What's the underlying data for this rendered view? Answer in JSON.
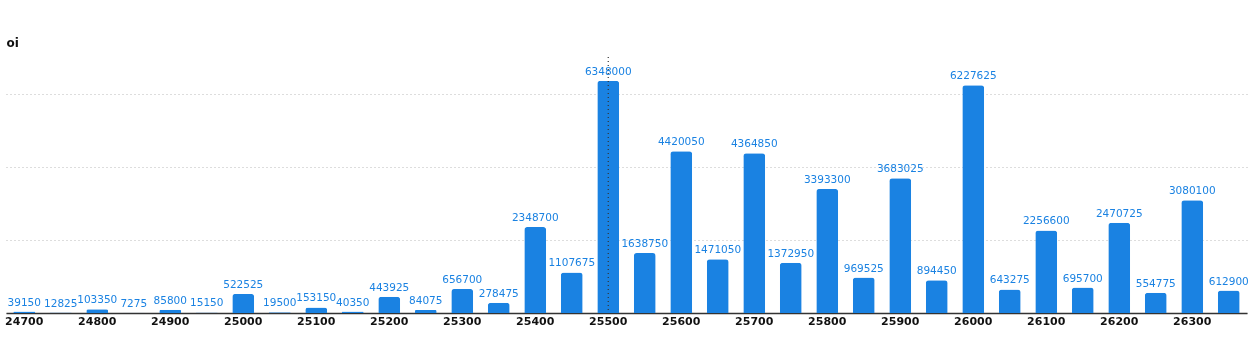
{
  "chart_data": {
    "type": "bar",
    "ylabel": "oi",
    "categories": [
      "24700",
      null,
      "24800",
      null,
      "24900",
      null,
      "25000",
      null,
      "25100",
      null,
      "25200",
      null,
      "25300",
      null,
      "25400",
      null,
      "25500",
      null,
      "25600",
      null,
      "25700",
      null,
      "25800",
      null,
      "25900",
      null,
      "26000",
      null,
      "26100",
      null,
      "26200",
      null,
      "26300",
      null
    ],
    "values": [
      39150,
      12825,
      103350,
      7275,
      85800,
      15150,
      522525,
      19500,
      153150,
      40350,
      443925,
      84075,
      656700,
      278475,
      2348700,
      1107675,
      6348000,
      1638750,
      4420050,
      1471050,
      4364850,
      1372950,
      3393300,
      969525,
      3683025,
      894450,
      6227625,
      643275,
      2256600,
      695700,
      2470725,
      554775,
      3080100,
      612900
    ],
    "color": "#1a82e2",
    "ylim": [
      0,
      7000000
    ],
    "yticks": [
      {
        "value": 0,
        "label": null
      },
      {
        "value": 2000000,
        "label": null
      },
      {
        "value": 4000000,
        "label": null
      },
      {
        "value": 6000000,
        "label": null
      }
    ],
    "tick_labels": "x",
    "grid": "y",
    "data_labels": true,
    "ref_lines": [
      {
        "axis": "x",
        "value": "25500",
        "color": "#333333",
        "line_style": "dotted"
      }
    ]
  }
}
